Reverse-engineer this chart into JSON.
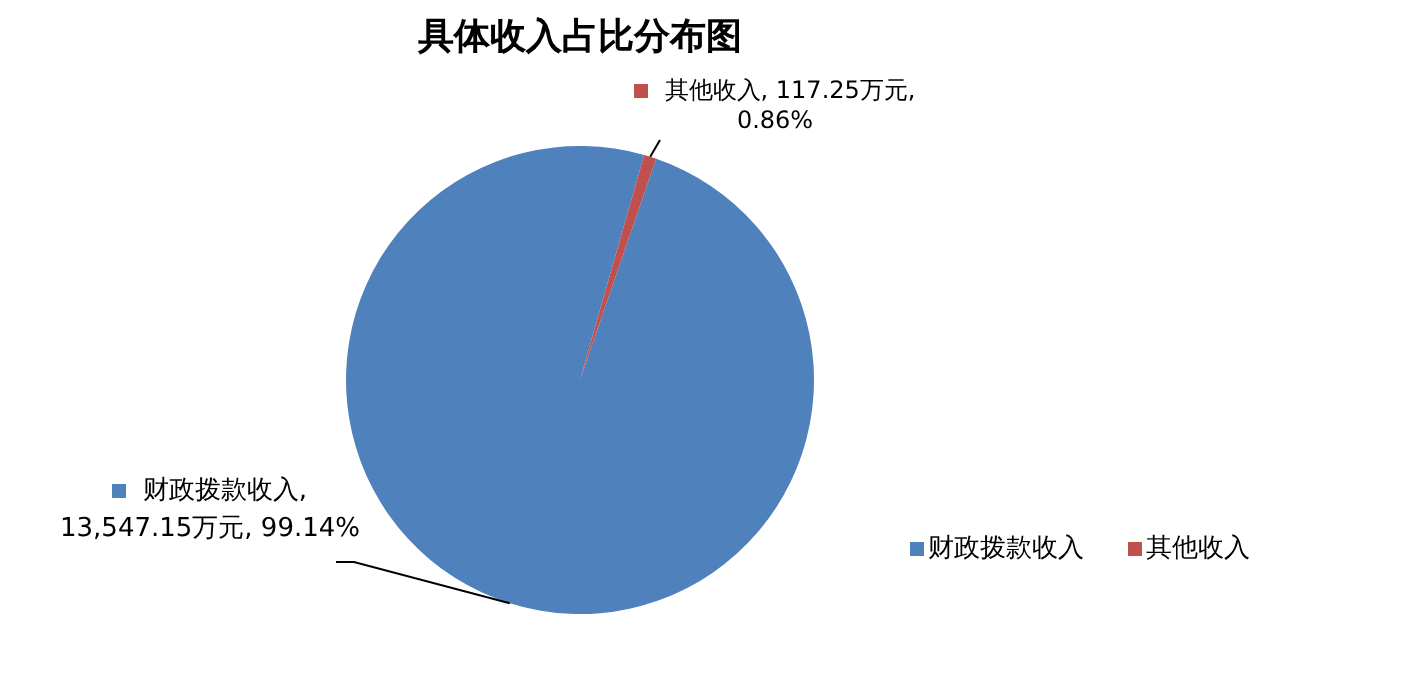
{
  "chart_data": {
    "type": "pie",
    "title": "具体收入占比分布图",
    "categories": [
      "财政拨款收入",
      "其他收入"
    ],
    "values": [
      13547.15,
      117.25
    ],
    "colors": [
      "#4f81bd",
      "#c0504d"
    ],
    "value_labels": [
      "财政拨款收入, 13,547.15万元, 99.14%",
      "其他收入, 117.25万元, 0.86%"
    ],
    "legend": "bottom right"
  }
}
